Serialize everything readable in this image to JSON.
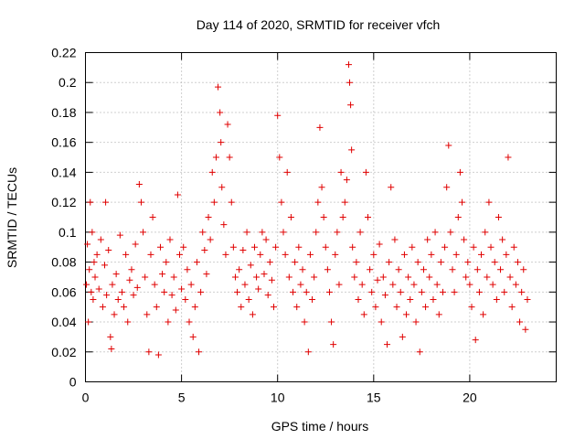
{
  "chart_data": {
    "type": "scatter",
    "title": "Day 114 of 2020, SRMTID for receiver vfch",
    "xlabel": "GPS time / hours",
    "ylabel": "SRMTID / TECUs",
    "xlim": [
      0,
      24.5
    ],
    "ylim": [
      0,
      0.22
    ],
    "xticks": [
      0,
      5,
      10,
      15,
      20
    ],
    "yticks": [
      0,
      0.02,
      0.04,
      0.06,
      0.08,
      0.1,
      0.12,
      0.14,
      0.16,
      0.18,
      0.2,
      0.22
    ],
    "xtick_labels": [
      "0",
      "5",
      "10",
      "15",
      "20"
    ],
    "ytick_labels": [
      "0",
      "0.02",
      "0.04",
      "0.06",
      "0.08",
      "0.1",
      "0.12",
      "0.14",
      "0.16",
      "0.18",
      "0.2",
      "0.22"
    ],
    "grid": true,
    "marker": "plus",
    "color": "#e00000",
    "series": [
      {
        "points": [
          [
            0.05,
            0.065
          ],
          [
            0.1,
            0.092
          ],
          [
            0.15,
            0.04
          ],
          [
            0.2,
            0.075
          ],
          [
            0.25,
            0.12
          ],
          [
            0.3,
            0.06
          ],
          [
            0.35,
            0.1
          ],
          [
            0.4,
            0.055
          ],
          [
            0.45,
            0.08
          ],
          [
            0.5,
            0.07
          ],
          [
            0.6,
            0.085
          ],
          [
            0.7,
            0.062
          ],
          [
            0.8,
            0.095
          ],
          [
            0.9,
            0.05
          ],
          [
            1.0,
            0.078
          ],
          [
            1.05,
            0.12
          ],
          [
            1.1,
            0.058
          ],
          [
            1.2,
            0.088
          ],
          [
            1.3,
            0.03
          ],
          [
            1.35,
            0.022
          ],
          [
            1.4,
            0.065
          ],
          [
            1.5,
            0.045
          ],
          [
            1.6,
            0.072
          ],
          [
            1.7,
            0.055
          ],
          [
            1.8,
            0.098
          ],
          [
            1.9,
            0.06
          ],
          [
            2.0,
            0.05
          ],
          [
            2.1,
            0.085
          ],
          [
            2.2,
            0.04
          ],
          [
            2.3,
            0.068
          ],
          [
            2.4,
            0.075
          ],
          [
            2.5,
            0.058
          ],
          [
            2.6,
            0.092
          ],
          [
            2.7,
            0.063
          ],
          [
            2.8,
            0.132
          ],
          [
            2.9,
            0.12
          ],
          [
            3.0,
            0.1
          ],
          [
            3.1,
            0.07
          ],
          [
            3.2,
            0.045
          ],
          [
            3.3,
            0.02
          ],
          [
            3.4,
            0.085
          ],
          [
            3.5,
            0.11
          ],
          [
            3.6,
            0.065
          ],
          [
            3.7,
            0.05
          ],
          [
            3.8,
            0.018
          ],
          [
            3.9,
            0.09
          ],
          [
            4.0,
            0.072
          ],
          [
            4.1,
            0.06
          ],
          [
            4.2,
            0.08
          ],
          [
            4.3,
            0.04
          ],
          [
            4.4,
            0.095
          ],
          [
            4.5,
            0.058
          ],
          [
            4.6,
            0.07
          ],
          [
            4.7,
            0.048
          ],
          [
            4.8,
            0.125
          ],
          [
            4.9,
            0.085
          ],
          [
            5.0,
            0.062
          ],
          [
            5.1,
            0.09
          ],
          [
            5.2,
            0.055
          ],
          [
            5.3,
            0.075
          ],
          [
            5.4,
            0.04
          ],
          [
            5.5,
            0.065
          ],
          [
            5.6,
            0.03
          ],
          [
            5.7,
            0.05
          ],
          [
            5.8,
            0.08
          ],
          [
            5.9,
            0.02
          ],
          [
            6.0,
            0.06
          ],
          [
            6.1,
            0.1
          ],
          [
            6.2,
            0.088
          ],
          [
            6.3,
            0.072
          ],
          [
            6.4,
            0.11
          ],
          [
            6.5,
            0.095
          ],
          [
            6.6,
            0.14
          ],
          [
            6.7,
            0.12
          ],
          [
            6.8,
            0.15
          ],
          [
            6.9,
            0.197
          ],
          [
            7.0,
            0.18
          ],
          [
            7.05,
            0.16
          ],
          [
            7.1,
            0.13
          ],
          [
            7.2,
            0.105
          ],
          [
            7.3,
            0.085
          ],
          [
            7.4,
            0.172
          ],
          [
            7.5,
            0.15
          ],
          [
            7.6,
            0.12
          ],
          [
            7.7,
            0.09
          ],
          [
            7.8,
            0.07
          ],
          [
            7.9,
            0.06
          ],
          [
            8.0,
            0.075
          ],
          [
            8.1,
            0.05
          ],
          [
            8.2,
            0.088
          ],
          [
            8.3,
            0.065
          ],
          [
            8.4,
            0.1
          ],
          [
            8.5,
            0.055
          ],
          [
            8.6,
            0.078
          ],
          [
            8.7,
            0.045
          ],
          [
            8.8,
            0.09
          ],
          [
            8.9,
            0.07
          ],
          [
            9.0,
            0.062
          ],
          [
            9.1,
            0.085
          ],
          [
            9.2,
            0.1
          ],
          [
            9.3,
            0.072
          ],
          [
            9.4,
            0.095
          ],
          [
            9.5,
            0.058
          ],
          [
            9.6,
            0.08
          ],
          [
            9.7,
            0.068
          ],
          [
            9.8,
            0.05
          ],
          [
            9.9,
            0.09
          ],
          [
            10.0,
            0.178
          ],
          [
            10.1,
            0.15
          ],
          [
            10.2,
            0.12
          ],
          [
            10.3,
            0.1
          ],
          [
            10.4,
            0.085
          ],
          [
            10.5,
            0.14
          ],
          [
            10.6,
            0.07
          ],
          [
            10.7,
            0.11
          ],
          [
            10.8,
            0.06
          ],
          [
            10.9,
            0.08
          ],
          [
            11.0,
            0.05
          ],
          [
            11.1,
            0.09
          ],
          [
            11.2,
            0.065
          ],
          [
            11.3,
            0.075
          ],
          [
            11.4,
            0.04
          ],
          [
            11.5,
            0.06
          ],
          [
            11.6,
            0.02
          ],
          [
            11.7,
            0.085
          ],
          [
            11.8,
            0.055
          ],
          [
            11.9,
            0.07
          ],
          [
            12.0,
            0.1
          ],
          [
            12.1,
            0.12
          ],
          [
            12.2,
            0.17
          ],
          [
            12.3,
            0.13
          ],
          [
            12.4,
            0.11
          ],
          [
            12.5,
            0.09
          ],
          [
            12.6,
            0.075
          ],
          [
            12.7,
            0.06
          ],
          [
            12.8,
            0.04
          ],
          [
            12.9,
            0.025
          ],
          [
            13.0,
            0.085
          ],
          [
            13.1,
            0.1
          ],
          [
            13.2,
            0.065
          ],
          [
            13.3,
            0.14
          ],
          [
            13.4,
            0.11
          ],
          [
            13.5,
            0.12
          ],
          [
            13.6,
            0.135
          ],
          [
            13.7,
            0.212
          ],
          [
            13.75,
            0.2
          ],
          [
            13.8,
            0.185
          ],
          [
            13.85,
            0.155
          ],
          [
            13.9,
            0.09
          ],
          [
            14.0,
            0.07
          ],
          [
            14.1,
            0.08
          ],
          [
            14.2,
            0.055
          ],
          [
            14.3,
            0.1
          ],
          [
            14.4,
            0.065
          ],
          [
            14.5,
            0.045
          ],
          [
            14.6,
            0.14
          ],
          [
            14.7,
            0.11
          ],
          [
            14.8,
            0.075
          ],
          [
            14.9,
            0.06
          ],
          [
            15.0,
            0.085
          ],
          [
            15.1,
            0.05
          ],
          [
            15.2,
            0.068
          ],
          [
            15.3,
            0.092
          ],
          [
            15.4,
            0.04
          ],
          [
            15.5,
            0.07
          ],
          [
            15.6,
            0.058
          ],
          [
            15.7,
            0.025
          ],
          [
            15.8,
            0.08
          ],
          [
            15.9,
            0.13
          ],
          [
            16.0,
            0.065
          ],
          [
            16.1,
            0.095
          ],
          [
            16.2,
            0.05
          ],
          [
            16.3,
            0.075
          ],
          [
            16.4,
            0.06
          ],
          [
            16.5,
            0.03
          ],
          [
            16.6,
            0.085
          ],
          [
            16.7,
            0.045
          ],
          [
            16.8,
            0.07
          ],
          [
            16.9,
            0.055
          ],
          [
            17.0,
            0.09
          ],
          [
            17.1,
            0.065
          ],
          [
            17.2,
            0.04
          ],
          [
            17.3,
            0.08
          ],
          [
            17.4,
            0.02
          ],
          [
            17.5,
            0.06
          ],
          [
            17.6,
            0.075
          ],
          [
            17.7,
            0.05
          ],
          [
            17.8,
            0.095
          ],
          [
            17.9,
            0.07
          ],
          [
            18.0,
            0.085
          ],
          [
            18.1,
            0.055
          ],
          [
            18.2,
            0.1
          ],
          [
            18.3,
            0.065
          ],
          [
            18.4,
            0.045
          ],
          [
            18.5,
            0.08
          ],
          [
            18.6,
            0.06
          ],
          [
            18.7,
            0.09
          ],
          [
            18.8,
            0.13
          ],
          [
            18.9,
            0.158
          ],
          [
            19.0,
            0.1
          ],
          [
            19.1,
            0.075
          ],
          [
            19.2,
            0.06
          ],
          [
            19.3,
            0.085
          ],
          [
            19.4,
            0.11
          ],
          [
            19.5,
            0.14
          ],
          [
            19.6,
            0.12
          ],
          [
            19.7,
            0.095
          ],
          [
            19.8,
            0.07
          ],
          [
            19.9,
            0.08
          ],
          [
            20.0,
            0.065
          ],
          [
            20.1,
            0.05
          ],
          [
            20.2,
            0.09
          ],
          [
            20.3,
            0.028
          ],
          [
            20.4,
            0.075
          ],
          [
            20.5,
            0.06
          ],
          [
            20.6,
            0.085
          ],
          [
            20.7,
            0.045
          ],
          [
            20.8,
            0.1
          ],
          [
            20.9,
            0.07
          ],
          [
            21.0,
            0.12
          ],
          [
            21.1,
            0.09
          ],
          [
            21.2,
            0.065
          ],
          [
            21.3,
            0.08
          ],
          [
            21.4,
            0.055
          ],
          [
            21.5,
            0.11
          ],
          [
            21.6,
            0.075
          ],
          [
            21.7,
            0.095
          ],
          [
            21.8,
            0.06
          ],
          [
            21.9,
            0.085
          ],
          [
            22.0,
            0.15
          ],
          [
            22.1,
            0.07
          ],
          [
            22.2,
            0.05
          ],
          [
            22.3,
            0.09
          ],
          [
            22.4,
            0.065
          ],
          [
            22.5,
            0.08
          ],
          [
            22.6,
            0.04
          ],
          [
            22.7,
            0.06
          ],
          [
            22.8,
            0.075
          ],
          [
            22.9,
            0.035
          ],
          [
            23.0,
            0.055
          ]
        ]
      }
    ]
  }
}
